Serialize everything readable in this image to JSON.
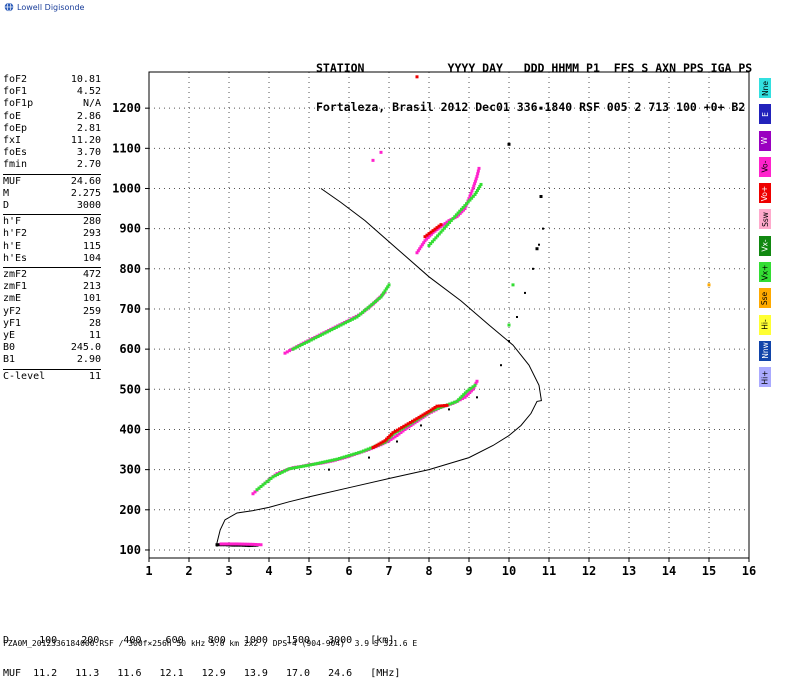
{
  "logo": {
    "text": "Lowell Digisonde"
  },
  "header": {
    "line1": "STATION            YYYY DAY   DDD HHMM P1  FFS S AXN PPS IGA PS",
    "line2": "Fortaleza, Brasil 2012 Dec01 336 1840 RSF 005 2 713 100 +0+ B2"
  },
  "params_group1": [
    {
      "label": "foF2",
      "value": "10.81"
    },
    {
      "label": "foF1",
      "value": "4.52"
    },
    {
      "label": "foF1p",
      "value": "N/A"
    },
    {
      "label": "foE",
      "value": "2.86"
    },
    {
      "label": "foEp",
      "value": "2.81"
    },
    {
      "label": "fxI",
      "value": "11.20"
    },
    {
      "label": "foEs",
      "value": "3.70"
    },
    {
      "label": "fmin",
      "value": "2.70"
    }
  ],
  "params_group2": [
    {
      "label": "MUF",
      "value": "24.60"
    },
    {
      "label": "M",
      "value": "2.275"
    },
    {
      "label": "D",
      "value": "3000"
    }
  ],
  "params_group3": [
    {
      "label": "h'F",
      "value": "280"
    },
    {
      "label": "h'F2",
      "value": "293"
    },
    {
      "label": "h'E",
      "value": "115"
    },
    {
      "label": "h'Es",
      "value": "104"
    }
  ],
  "params_group4": [
    {
      "label": "zmF2",
      "value": "472"
    },
    {
      "label": "zmF1",
      "value": "213"
    },
    {
      "label": "zmE",
      "value": "101"
    },
    {
      "label": "yF2",
      "value": "259"
    },
    {
      "label": "yF1",
      "value": "28"
    },
    {
      "label": "yE",
      "value": "11"
    },
    {
      "label": "B0",
      "value": "245.0"
    },
    {
      "label": "B1",
      "value": "2.90"
    }
  ],
  "params_group5": [
    {
      "label": "C-level",
      "value": "11"
    }
  ],
  "legend": [
    {
      "label": "Nne",
      "color": "#33e0e0"
    },
    {
      "label": "E",
      "color": "#2222bb"
    },
    {
      "label": "W",
      "color": "#9a00c0"
    },
    {
      "label": "Vo-",
      "color": "#ff22cc"
    },
    {
      "label": "Vo+",
      "color": "#ee0000"
    },
    {
      "label": "Ssw",
      "color": "#ffaacc"
    },
    {
      "label": "Vx-",
      "color": "#118811"
    },
    {
      "label": "Vx+",
      "color": "#33dd33"
    },
    {
      "label": "Sse",
      "color": "#ffaa00"
    },
    {
      "label": "Hi-",
      "color": "#ffff33"
    },
    {
      "label": "Nnw",
      "color": "#1144aa"
    },
    {
      "label": "Hi+",
      "color": "#aaaaff"
    }
  ],
  "muf_table": {
    "line1": "D     100    200    400    600    800   1000   1500   3000   [km]",
    "line2": "MUF  11.2   11.3   11.6   12.1   12.9   13.9   17.0   24.6   [MHz]"
  },
  "footer": "FZA0M_2012336184000.RSF / 300f×256h 50 kHz 5.0 km 2x2 / DPS-4 (904-904)  3.9 S 321.6 E",
  "chart_data": {
    "type": "scatter",
    "xlim": [
      1,
      16
    ],
    "ylim": [
      80,
      1290
    ],
    "x_ticks": [
      1,
      2,
      3,
      4,
      5,
      6,
      7,
      8,
      9,
      10,
      11,
      12,
      13,
      14,
      15,
      16
    ],
    "y_ticks": [
      100,
      200,
      300,
      400,
      500,
      600,
      700,
      800,
      900,
      1000,
      1100,
      1200
    ],
    "grid": true,
    "profile": [
      [
        2.7,
        108
      ],
      [
        2.7,
        118
      ],
      [
        2.78,
        150
      ],
      [
        2.9,
        175
      ],
      [
        3.2,
        192
      ],
      [
        3.6,
        198
      ],
      [
        4.0,
        206
      ],
      [
        4.5,
        220
      ],
      [
        5.0,
        232
      ],
      [
        6.0,
        255
      ],
      [
        7.0,
        278
      ],
      [
        8.0,
        300
      ],
      [
        9.0,
        330
      ],
      [
        9.6,
        360
      ],
      [
        10.0,
        385
      ],
      [
        10.3,
        410
      ],
      [
        10.55,
        440
      ],
      [
        10.7,
        470
      ],
      [
        10.81,
        472
      ],
      [
        10.75,
        510
      ],
      [
        10.5,
        560
      ],
      [
        10.1,
        610
      ],
      [
        9.5,
        660
      ],
      [
        8.8,
        720
      ],
      [
        8.0,
        780
      ],
      [
        7.2,
        850
      ],
      [
        6.4,
        920
      ],
      [
        5.8,
        965
      ],
      [
        5.3,
        1000
      ]
    ],
    "x_trace": [
      [
        5.5,
        300
      ],
      [
        6.5,
        330
      ],
      [
        7.2,
        370
      ],
      [
        7.8,
        410
      ],
      [
        8.5,
        450
      ],
      [
        9.2,
        480
      ],
      [
        9.8,
        560
      ],
      [
        10.0,
        620
      ],
      [
        10.2,
        680
      ],
      [
        10.4,
        740
      ],
      [
        10.6,
        800
      ],
      [
        10.75,
        860
      ],
      [
        10.85,
        900
      ]
    ],
    "echo_traces": [
      {
        "color": "#ff22cc",
        "points": [
          [
            3.6,
            240
          ],
          [
            3.8,
            258
          ],
          [
            4.0,
            275
          ],
          [
            4.2,
            290
          ],
          [
            4.4,
            298
          ],
          [
            4.6,
            305
          ],
          [
            4.8,
            308
          ],
          [
            5.0,
            312
          ],
          [
            5.3,
            316
          ],
          [
            5.6,
            322
          ],
          [
            5.9,
            330
          ],
          [
            6.2,
            340
          ],
          [
            6.5,
            350
          ],
          [
            6.8,
            362
          ],
          [
            7.0,
            372
          ],
          [
            7.2,
            385
          ],
          [
            7.4,
            400
          ],
          [
            7.7,
            420
          ],
          [
            8.0,
            440
          ],
          [
            8.3,
            455
          ],
          [
            8.6,
            465
          ],
          [
            8.9,
            480
          ],
          [
            9.1,
            500
          ],
          [
            9.2,
            520
          ]
        ]
      },
      {
        "color": "#33dd33",
        "points": [
          [
            3.7,
            250
          ],
          [
            4.1,
            282
          ],
          [
            4.5,
            302
          ],
          [
            5.1,
            313
          ],
          [
            5.7,
            326
          ],
          [
            6.3,
            344
          ],
          [
            6.9,
            368
          ],
          [
            7.1,
            388
          ],
          [
            8.1,
            448
          ],
          [
            8.7,
            470
          ],
          [
            8.95,
            495
          ],
          [
            9.15,
            510
          ]
        ]
      },
      {
        "color": "#ee0000",
        "points": [
          [
            6.6,
            355
          ],
          [
            6.9,
            372
          ],
          [
            7.1,
            392
          ],
          [
            7.75,
            430
          ],
          [
            8.0,
            445
          ],
          [
            8.2,
            458
          ],
          [
            8.45,
            460
          ]
        ]
      },
      {
        "color": "#ff22cc",
        "points": [
          [
            4.4,
            590
          ],
          [
            4.8,
            612
          ],
          [
            5.2,
            632
          ],
          [
            5.6,
            652
          ],
          [
            6.0,
            672
          ],
          [
            6.3,
            688
          ],
          [
            6.6,
            712
          ],
          [
            6.9,
            742
          ]
        ]
      },
      {
        "color": "#33dd33",
        "points": [
          [
            4.6,
            600
          ],
          [
            5.4,
            640
          ],
          [
            6.2,
            680
          ],
          [
            6.8,
            730
          ],
          [
            7.0,
            760
          ]
        ]
      },
      {
        "color": "#ff22cc",
        "points": [
          [
            7.7,
            840
          ],
          [
            7.9,
            870
          ],
          [
            8.1,
            890
          ],
          [
            8.3,
            905
          ],
          [
            8.5,
            920
          ],
          [
            8.7,
            930
          ],
          [
            8.9,
            950
          ],
          [
            9.0,
            975
          ],
          [
            9.1,
            1000
          ],
          [
            9.2,
            1030
          ],
          [
            9.25,
            1050
          ]
        ]
      },
      {
        "color": "#33dd33",
        "points": [
          [
            8.0,
            858
          ],
          [
            8.6,
            925
          ],
          [
            9.15,
            985
          ],
          [
            9.3,
            1010
          ]
        ]
      },
      {
        "color": "#ee0000",
        "points": [
          [
            7.9,
            880
          ],
          [
            8.1,
            895
          ],
          [
            8.3,
            910
          ]
        ]
      },
      {
        "color": "#000000",
        "points": [
          [
            2.7,
            113
          ],
          [
            2.9,
            113
          ],
          [
            3.1,
            112
          ],
          [
            3.3,
            112
          ],
          [
            3.5,
            111
          ],
          [
            3.7,
            112
          ]
        ]
      },
      {
        "color": "#ff22cc",
        "points": [
          [
            2.8,
            115
          ],
          [
            3.2,
            115
          ],
          [
            3.6,
            114
          ],
          [
            3.8,
            113
          ]
        ]
      }
    ],
    "isolated_points": [
      {
        "color": "#ff22cc",
        "points": [
          [
            6.6,
            1070
          ],
          [
            6.8,
            1090
          ]
        ]
      },
      {
        "color": "#ee0000",
        "points": [
          [
            7.7,
            1278
          ]
        ]
      },
      {
        "color": "#000000",
        "points": [
          [
            10.0,
            1110
          ],
          [
            10.8,
            1200
          ],
          [
            10.8,
            980
          ],
          [
            10.7,
            850
          ]
        ]
      },
      {
        "color": "#33dd33",
        "points": [
          [
            10.0,
            660
          ],
          [
            10.1,
            760
          ]
        ]
      },
      {
        "color": "#ffaa00",
        "points": [
          [
            15.0,
            760
          ]
        ]
      }
    ]
  }
}
